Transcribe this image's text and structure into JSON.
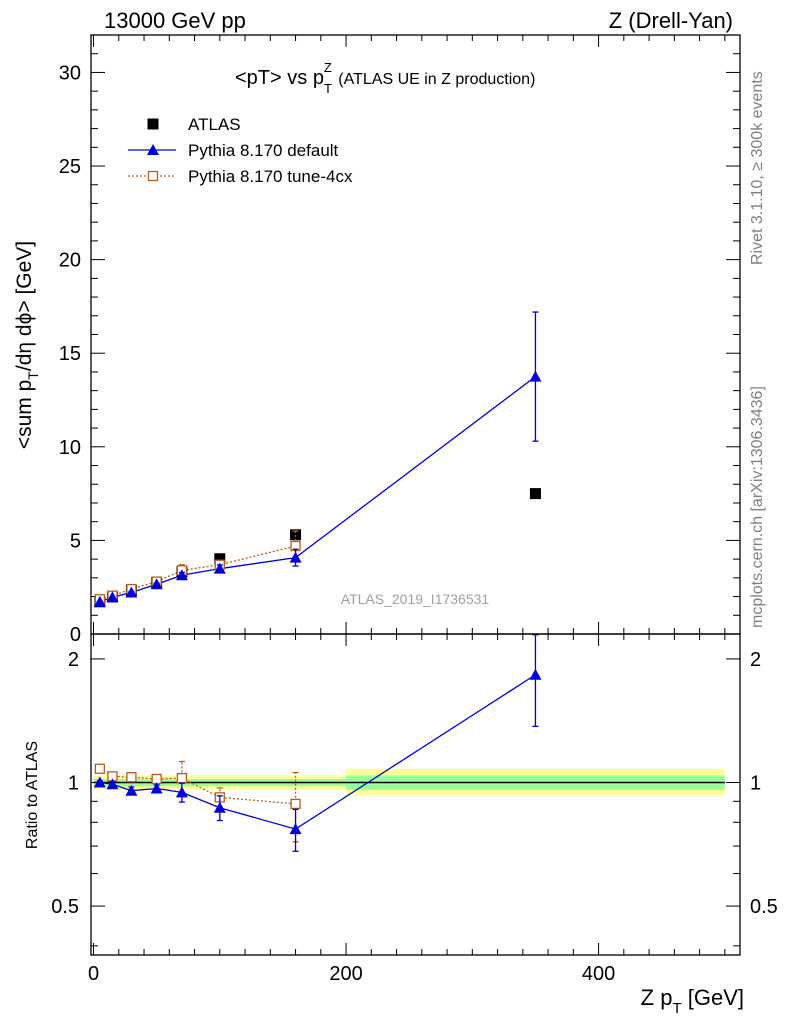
{
  "header": {
    "left": "13000 GeV pp",
    "right": "Z (Drell-Yan)"
  },
  "side_labels": {
    "rivet": "Rivet 3.1.10, ≥ 300k events",
    "mcplots": "mcplots.cern.ch [arXiv:1306.3436]"
  },
  "chart_data": [
    {
      "type": "scatter",
      "title_main": "<pT> vs p",
      "title_sup": "Z",
      "title_sub": "T",
      "title_tail": " (ATLAS UE in Z production)",
      "ylabel": "<sum p_T/dη dϕ> [GeV]",
      "analysis_id": "ATLAS_2019_I1736531",
      "xlim": [
        -2,
        512
      ],
      "ylim": [
        0,
        32
      ],
      "yticks": [
        0,
        5,
        10,
        15,
        20,
        25,
        30
      ],
      "legend_position": "top-left",
      "legend": [
        {
          "name": "ATLAS",
          "marker": "filled-square",
          "color": "#000000"
        },
        {
          "name": "Pythia 8.170 default",
          "marker": "filled-triangle",
          "color": "#0000dd"
        },
        {
          "name": "Pythia 8.170 tune-4cx",
          "marker": "open-square",
          "color": "#b85e1e"
        }
      ],
      "series": [
        {
          "name": "ATLAS",
          "x": [
            5,
            15,
            30,
            50,
            70,
            100,
            160,
            350
          ],
          "y": [
            1.72,
            1.98,
            2.33,
            2.75,
            3.32,
            4.02,
            5.3,
            7.5
          ],
          "err": [
            0.02,
            0.03,
            0.04,
            0.05,
            0.06,
            0.08,
            0.12,
            0.2
          ]
        },
        {
          "name": "Pythia 8.170 default",
          "x": [
            5,
            15,
            30,
            50,
            70,
            100,
            160,
            350
          ],
          "y": [
            1.72,
            1.96,
            2.22,
            2.66,
            3.14,
            3.49,
            4.08,
            13.75
          ],
          "err": [
            0.02,
            0.03,
            0.04,
            0.06,
            0.15,
            0.2,
            0.45,
            3.45
          ]
        },
        {
          "name": "Pythia 8.170 tune-4cx",
          "x": [
            5,
            15,
            30,
            50,
            70,
            100,
            160
          ],
          "y": [
            1.86,
            2.05,
            2.4,
            2.8,
            3.4,
            3.7,
            4.7
          ],
          "err": [
            0.02,
            0.03,
            0.04,
            0.06,
            0.3,
            0.15,
            0.8
          ]
        }
      ]
    },
    {
      "type": "scatter",
      "ylabel": "Ratio to ATLAS",
      "xlabel_main": "Z p",
      "xlabel_sub": "T",
      "xlabel_tail": " [GeV]",
      "xlim": [
        -2,
        512
      ],
      "ylim": [
        0.38,
        2.3
      ],
      "yscale": "log",
      "yticks": [
        0.5,
        1,
        2
      ],
      "ytick_labels": [
        "0.5",
        "1",
        "2"
      ],
      "xticks": [
        0,
        200,
        400
      ],
      "xtick_labels": [
        "0",
        "200",
        "400"
      ],
      "bands": [
        {
          "x": [
            0,
            200
          ],
          "yellow": [
            0.96,
            1.04
          ],
          "green": [
            0.98,
            1.02
          ]
        },
        {
          "x": [
            200,
            500
          ],
          "yellow": [
            0.93,
            1.08
          ],
          "green": [
            0.96,
            1.04
          ]
        }
      ],
      "series": [
        {
          "name": "Pythia 8.170 default",
          "x": [
            5,
            15,
            30,
            50,
            70,
            100,
            160,
            350
          ],
          "y": [
            1.0,
            0.99,
            0.955,
            0.967,
            0.946,
            0.868,
            0.77,
            1.83
          ],
          "err": [
            0.01,
            0.015,
            0.02,
            0.02,
            0.05,
            0.06,
            0.09,
            0.46
          ]
        },
        {
          "name": "Pythia 8.170 tune-4cx",
          "x": [
            5,
            15,
            30,
            50,
            70,
            100,
            160
          ],
          "y": [
            1.08,
            1.035,
            1.03,
            1.02,
            1.025,
            0.92,
            0.887
          ],
          "err": [
            0.01,
            0.015,
            0.02,
            0.02,
            0.1,
            0.05,
            0.17
          ]
        }
      ]
    }
  ]
}
